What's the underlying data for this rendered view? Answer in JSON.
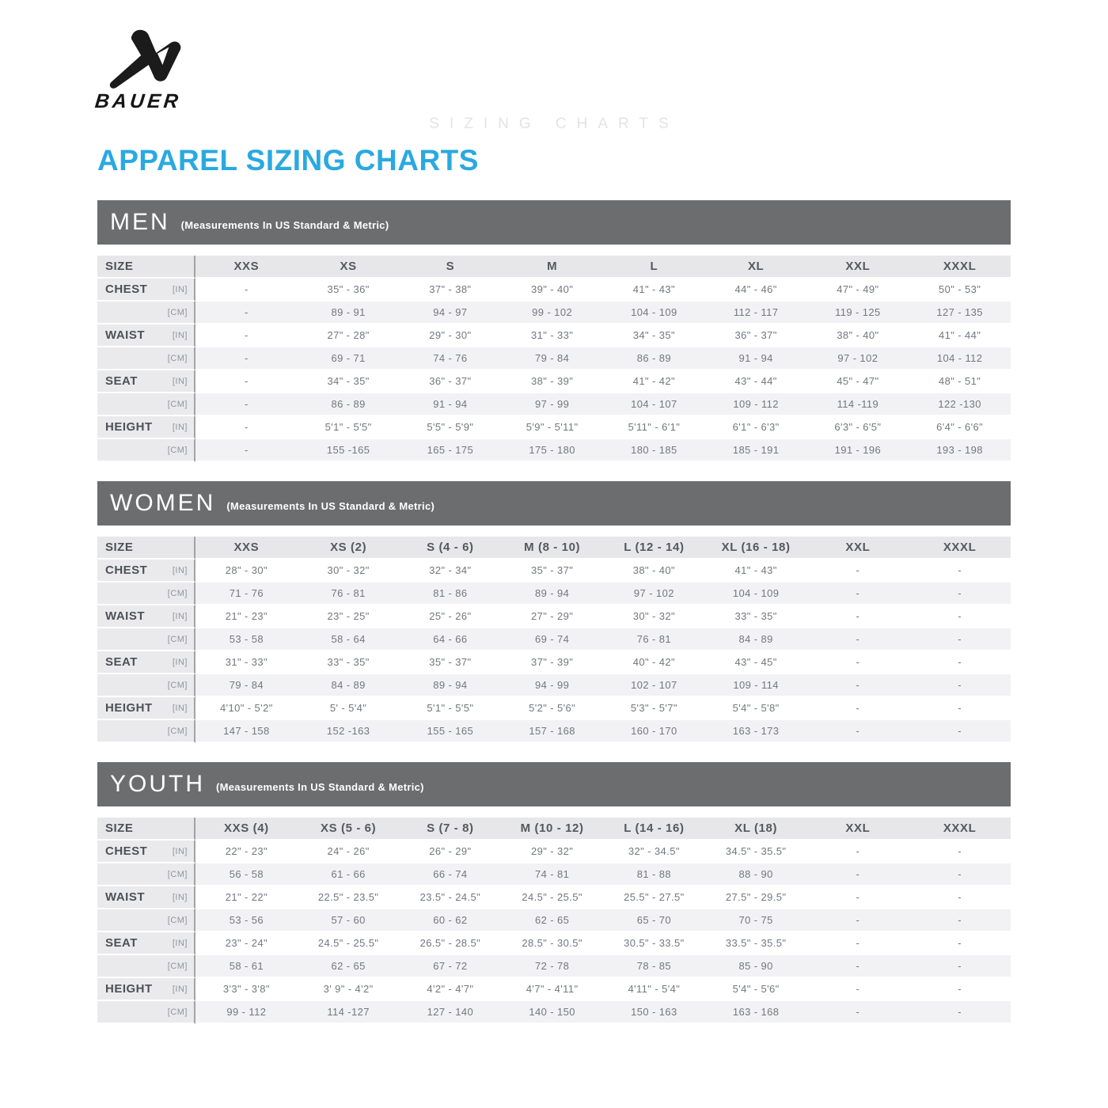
{
  "brand": {
    "name": "BAUER"
  },
  "page": {
    "watermark": "SIZING CHARTS",
    "title": "APPAREL SIZING CHARTS"
  },
  "colors": {
    "accent_blue": "#2aa9e0",
    "banner_gray": "#6c6d6f"
  },
  "tables": [
    {
      "id": "men",
      "title": "MEN",
      "subtitle": "(Measurements In US Standard & Metric)",
      "size_label": "SIZE",
      "columns": [
        "XXS",
        "XS",
        "S",
        "M",
        "L",
        "XL",
        "XXL",
        "XXXL"
      ],
      "rows": [
        {
          "label": "CHEST",
          "unit": "[IN]",
          "values": [
            "-",
            "35\" - 36\"",
            "37\" - 38\"",
            "39\" - 40\"",
            "41\" - 43\"",
            "44\" - 46\"",
            "47\" - 49\"",
            "50\" - 53\""
          ]
        },
        {
          "label": "",
          "unit": "[CM]",
          "values": [
            "-",
            "89 - 91",
            "94 - 97",
            "99 - 102",
            "104 - 109",
            "112 - 117",
            "119 - 125",
            "127 - 135"
          ]
        },
        {
          "label": "WAIST",
          "unit": "[IN]",
          "values": [
            "-",
            "27\" - 28\"",
            "29\" - 30\"",
            "31\" - 33\"",
            "34\" - 35\"",
            "36\" - 37\"",
            "38\" - 40\"",
            "41\" - 44\""
          ]
        },
        {
          "label": "",
          "unit": "[CM]",
          "values": [
            "-",
            "69 - 71",
            "74 - 76",
            "79 - 84",
            "86 - 89",
            "91 - 94",
            "97 - 102",
            "104 - 112"
          ]
        },
        {
          "label": "SEAT",
          "unit": "[IN]",
          "values": [
            "-",
            "34\" - 35\"",
            "36\" - 37\"",
            "38\" - 39\"",
            "41\" - 42\"",
            "43\" - 44\"",
            "45\" - 47\"",
            "48\" - 51\""
          ]
        },
        {
          "label": "",
          "unit": "[CM]",
          "values": [
            "-",
            "86 - 89",
            "91 - 94",
            "97 - 99",
            "104 - 107",
            "109 - 112",
            "114 -119",
            "122 -130"
          ]
        },
        {
          "label": "HEIGHT",
          "unit": "[IN]",
          "values": [
            "-",
            "5'1\" - 5'5\"",
            "5'5\" - 5'9\"",
            "5'9\" - 5'11\"",
            "5'11\" - 6'1\"",
            "6'1\" - 6'3\"",
            "6'3\" - 6'5\"",
            "6'4\" - 6'6\""
          ]
        },
        {
          "label": "",
          "unit": "[CM]",
          "values": [
            "-",
            "155 -165",
            "165 - 175",
            "175 - 180",
            "180 - 185",
            "185 - 191",
            "191 - 196",
            "193 - 198"
          ]
        }
      ]
    },
    {
      "id": "women",
      "title": "WOMEN",
      "subtitle": "(Measurements In US Standard & Metric)",
      "size_label": "SIZE",
      "columns": [
        "XXS",
        "XS (2)",
        "S (4 - 6)",
        "M (8 - 10)",
        "L (12 - 14)",
        "XL (16 - 18)",
        "XXL",
        "XXXL"
      ],
      "rows": [
        {
          "label": "CHEST",
          "unit": "[IN]",
          "values": [
            "28\" - 30\"",
            "30\" - 32\"",
            "32\" - 34\"",
            "35\" - 37\"",
            "38\" - 40\"",
            "41\" - 43\"",
            "-",
            "-"
          ]
        },
        {
          "label": "",
          "unit": "[CM]",
          "values": [
            "71 - 76",
            "76 - 81",
            "81 - 86",
            "89 - 94",
            "97 - 102",
            "104 - 109",
            "-",
            "-"
          ]
        },
        {
          "label": "WAIST",
          "unit": "[IN]",
          "values": [
            "21\" - 23\"",
            "23\" - 25\"",
            "25\" - 26\"",
            "27\" - 29\"",
            "30\" - 32\"",
            "33\" - 35\"",
            "-",
            "-"
          ]
        },
        {
          "label": "",
          "unit": "[CM]",
          "values": [
            "53 - 58",
            "58 - 64",
            "64 - 66",
            "69 - 74",
            "76 - 81",
            "84 - 89",
            "-",
            "-"
          ]
        },
        {
          "label": "SEAT",
          "unit": "[IN]",
          "values": [
            "31\" - 33\"",
            "33\" - 35\"",
            "35\" - 37\"",
            "37\" - 39\"",
            "40\" - 42\"",
            "43\" - 45\"",
            "-",
            "-"
          ]
        },
        {
          "label": "",
          "unit": "[CM]",
          "values": [
            "79 - 84",
            "84 - 89",
            "89 - 94",
            "94 - 99",
            "102 - 107",
            "109 - 114",
            "-",
            "-"
          ]
        },
        {
          "label": "HEIGHT",
          "unit": "[IN]",
          "values": [
            "4'10\" - 5'2\"",
            "5' - 5'4\"",
            "5'1\" - 5'5\"",
            "5'2\" - 5'6\"",
            "5'3\" - 5'7\"",
            "5'4\" - 5'8\"",
            "-",
            "-"
          ]
        },
        {
          "label": "",
          "unit": "[CM]",
          "values": [
            "147 - 158",
            "152 -163",
            "155 - 165",
            "157 - 168",
            "160 - 170",
            "163 - 173",
            "-",
            "-"
          ]
        }
      ]
    },
    {
      "id": "youth",
      "title": "YOUTH",
      "subtitle": "(Measurements In US Standard & Metric)",
      "size_label": "SIZE",
      "columns": [
        "XXS (4)",
        "XS (5 - 6)",
        "S (7 - 8)",
        "M (10 - 12)",
        "L (14 - 16)",
        "XL (18)",
        "XXL",
        "XXXL"
      ],
      "rows": [
        {
          "label": "CHEST",
          "unit": "[IN]",
          "values": [
            "22\" - 23\"",
            "24\" - 26\"",
            "26\" - 29\"",
            "29\" - 32\"",
            "32\" - 34.5\"",
            "34.5\" - 35.5\"",
            "-",
            "-"
          ]
        },
        {
          "label": "",
          "unit": "[CM]",
          "values": [
            "56 - 58",
            "61 - 66",
            "66 - 74",
            "74 - 81",
            "81 - 88",
            "88 - 90",
            "-",
            "-"
          ]
        },
        {
          "label": "WAIST",
          "unit": "[IN]",
          "values": [
            "21\" - 22\"",
            "22.5\" - 23.5\"",
            "23.5\" - 24.5\"",
            "24.5\" - 25.5\"",
            "25.5\" - 27.5\"",
            "27.5\" - 29.5\"",
            "-",
            "-"
          ]
        },
        {
          "label": "",
          "unit": "[CM]",
          "values": [
            "53 - 56",
            "57 - 60",
            "60 - 62",
            "62 - 65",
            "65 - 70",
            "70 - 75",
            "-",
            "-"
          ]
        },
        {
          "label": "SEAT",
          "unit": "[IN]",
          "values": [
            "23\" - 24\"",
            "24.5\" - 25.5\"",
            "26.5\" - 28.5\"",
            "28.5\" - 30.5\"",
            "30.5\" - 33.5\"",
            "33.5\" - 35.5\"",
            "-",
            "-"
          ]
        },
        {
          "label": "",
          "unit": "[CM]",
          "values": [
            "58 - 61",
            "62 - 65",
            "67 - 72",
            "72 - 78",
            "78 - 85",
            "85 - 90",
            "-",
            "-"
          ]
        },
        {
          "label": "HEIGHT",
          "unit": "[IN]",
          "values": [
            "3'3\" - 3'8\"",
            "3' 9\" - 4'2\"",
            "4'2\" - 4'7\"",
            "4'7\" - 4'11\"",
            "4'11\" - 5'4\"",
            "5'4\" - 5'6\"",
            "-",
            "-"
          ]
        },
        {
          "label": "",
          "unit": "[CM]",
          "values": [
            "99 - 112",
            "114 -127",
            "127 - 140",
            "140 - 150",
            "150 - 163",
            "163 - 168",
            "-",
            "-"
          ]
        }
      ]
    }
  ]
}
